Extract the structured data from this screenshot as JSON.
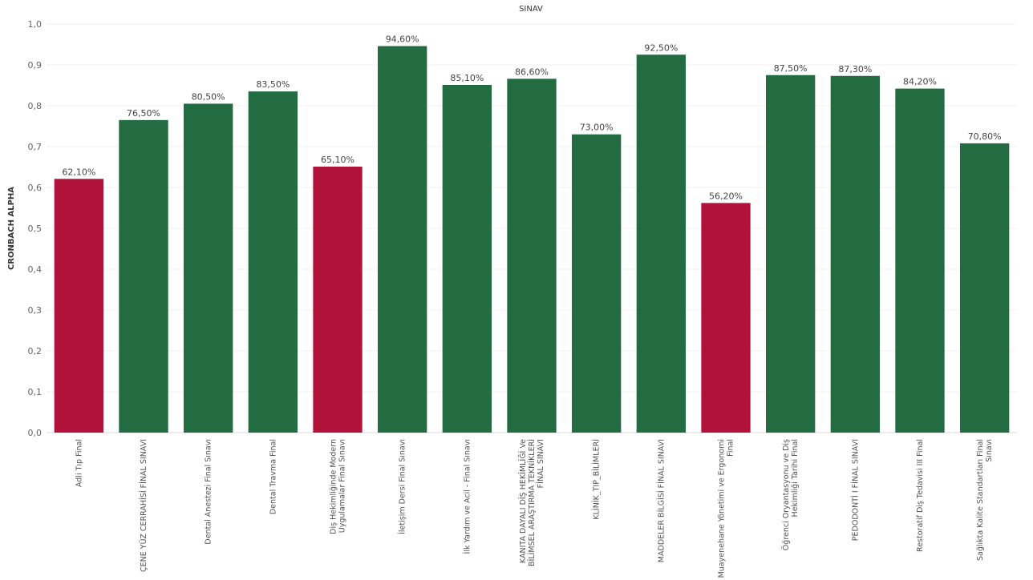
{
  "chart_data": {
    "type": "bar",
    "title": "SINAV",
    "xlabel": "",
    "ylabel": "CRONBACH ALPHA",
    "ylim": [
      0,
      1.0
    ],
    "yticks": [
      "0,0",
      "0,1",
      "0,2",
      "0,3",
      "0,4",
      "0,5",
      "0,6",
      "0,7",
      "0,8",
      "0,9",
      "1,0"
    ],
    "grid": true,
    "colors": {
      "good": "#236b41",
      "low": "#b0123a"
    },
    "categories": [
      [
        "Adli Tıp Final"
      ],
      [
        "ÇENE YÜZ CERRAHİSİ FİNAL SINAVI"
      ],
      [
        "Dental Anestezi Final Sınavı"
      ],
      [
        "Dental Travma Final"
      ],
      [
        "Diş Hekimliğinde Modern",
        "Uygulamalar Final Sınavı"
      ],
      [
        "İletişim Dersi Final Sınavı"
      ],
      [
        "İlk Yardım ve Acil - Final Sınavı"
      ],
      [
        "KANITA DAYALI DİŞ HEKİMLİĞİ Ve",
        "BİLİMSEL ARAŞTIRMA TEKNİKLERİ",
        "FİNAL SINAVI"
      ],
      [
        "KLİNİK_TIP_BİLİMLERİ"
      ],
      [
        "MADDELER BİLGİSİ FİNAL SINAVI"
      ],
      [
        "Muayenehane Yönetimi ve Ergonomi",
        "Final"
      ],
      [
        "Öğrenci Oryantasyonu ve Diş",
        "Hekimliği Tarihi Final"
      ],
      [
        "PEDODONTİ I FİNAL SINAVI"
      ],
      [
        "Restoratif Diş Tedavisi III Final"
      ],
      [
        "Sağlıkta Kalite Standartları Final",
        "Sınavı"
      ]
    ],
    "values": [
      0.621,
      0.765,
      0.805,
      0.835,
      0.651,
      0.946,
      0.851,
      0.866,
      0.73,
      0.925,
      0.562,
      0.875,
      0.873,
      0.842,
      0.708
    ],
    "labels": [
      "62,10%",
      "76,50%",
      "80,50%",
      "83,50%",
      "65,10%",
      "94,60%",
      "85,10%",
      "86,60%",
      "73,00%",
      "92,50%",
      "56,20%",
      "87,50%",
      "87,30%",
      "84,20%",
      "70,80%"
    ],
    "status": [
      "low",
      "good",
      "good",
      "good",
      "low",
      "good",
      "good",
      "good",
      "good",
      "good",
      "low",
      "good",
      "good",
      "good",
      "good"
    ]
  }
}
